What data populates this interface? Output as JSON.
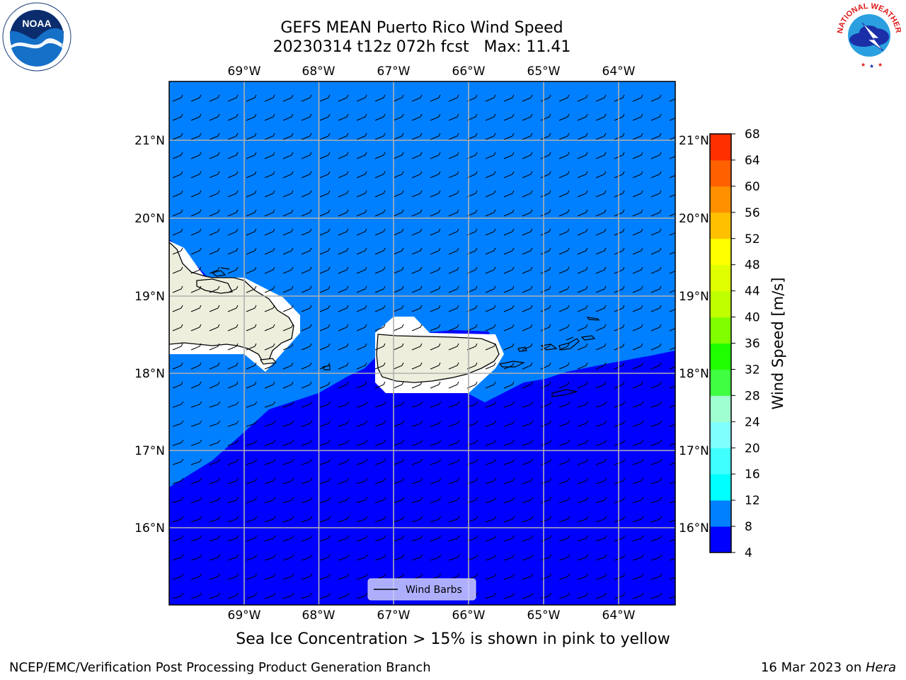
{
  "header": {
    "title_line1": "GEFS MEAN Puerto Rico Wind Speed",
    "title_line2": "20230314 t12z 072h fcst   Max: 11.41"
  },
  "logos": {
    "left": {
      "icon": "noaa-logo",
      "text": "NOAA"
    },
    "right": {
      "icon": "nws-logo",
      "text": "NATIONAL WEATHER SERVICE"
    }
  },
  "map": {
    "lon_labels": [
      "69°W",
      "68°W",
      "67°W",
      "66°W",
      "65°W",
      "64°W"
    ],
    "lat_labels": [
      "21°N",
      "20°N",
      "19°N",
      "18°N",
      "17°N",
      "16°N"
    ],
    "legend_label": "Wind Barbs",
    "colors": {
      "ocean_light": "#0080ff",
      "ocean_dark": "#0000ff",
      "land": "#eeeedd",
      "gridlines": "#b0b0b0"
    }
  },
  "colorbar": {
    "label": "Wind Speed [m/s]",
    "ticks": [
      "4",
      "8",
      "12",
      "16",
      "20",
      "24",
      "28",
      "32",
      "36",
      "40",
      "44",
      "48",
      "52",
      "56",
      "60",
      "64",
      "68"
    ],
    "colors": [
      "#0000ff",
      "#0080ff",
      "#00ffff",
      "#40ffff",
      "#80ffff",
      "#a0ffd0",
      "#40ff40",
      "#20ff00",
      "#80ff00",
      "#c0ff00",
      "#e0ff00",
      "#ffff00",
      "#ffc000",
      "#ff9000",
      "#ff6000",
      "#ff3000",
      "#ff0000"
    ]
  },
  "footer": {
    "note": "Sea Ice Concentration > 15% is shown in pink to yellow",
    "branch": "NCEP/EMC/Verification Post Processing Product Generation Branch",
    "date": "16 Mar 2023 on ",
    "machine": "Hera"
  }
}
